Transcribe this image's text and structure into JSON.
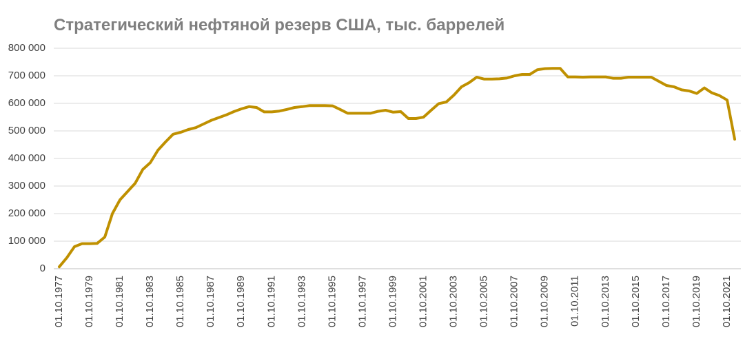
{
  "chart_data": {
    "type": "line",
    "title": "Стратегический нефтяной резерв США, тыс. баррелей",
    "categories": [
      "01.10.1977",
      null,
      null,
      null,
      "01.10.1979",
      null,
      null,
      null,
      "01.10.1981",
      null,
      null,
      null,
      "01.10.1983",
      null,
      null,
      null,
      "01.10.1985",
      null,
      null,
      null,
      "01.10.1987",
      null,
      null,
      null,
      "01.10.1989",
      null,
      null,
      null,
      "01.10.1991",
      null,
      null,
      null,
      "01.10.1993",
      null,
      null,
      null,
      "01.10.1995",
      null,
      null,
      null,
      "01.10.1997",
      null,
      null,
      null,
      "01.10.1999",
      null,
      null,
      null,
      "01.10.2001",
      null,
      null,
      null,
      "01.10.2003",
      null,
      null,
      null,
      "01.10.2005",
      null,
      null,
      null,
      "01.10.2007",
      null,
      null,
      null,
      "01.10.2009",
      null,
      null,
      null,
      "01.10.2011",
      null,
      null,
      null,
      "01.10.2013",
      null,
      null,
      null,
      "01.10.2015",
      null,
      null,
      null,
      "01.10.2017",
      null,
      null,
      null,
      "01.10.2019",
      null,
      null,
      null,
      "01.10.2021",
      null
    ],
    "values": [
      7000,
      40000,
      80000,
      91000,
      91000,
      92000,
      115000,
      200000,
      250000,
      280000,
      310000,
      360000,
      385000,
      430000,
      460000,
      488000,
      495000,
      505000,
      512000,
      525000,
      538000,
      548000,
      558000,
      570000,
      580000,
      588000,
      585000,
      569000,
      569000,
      572000,
      578000,
      585000,
      588000,
      592000,
      592000,
      592000,
      591000,
      578000,
      564000,
      564000,
      564000,
      564000,
      571000,
      575000,
      568000,
      570000,
      545000,
      545000,
      550000,
      575000,
      599000,
      605000,
      630000,
      660000,
      675000,
      695000,
      688000,
      688000,
      689000,
      692000,
      700000,
      705000,
      705000,
      722000,
      726000,
      727000,
      727000,
      696000,
      696000,
      695000,
      696000,
      696000,
      696000,
      691000,
      691000,
      695000,
      695000,
      695000,
      695000,
      680000,
      665000,
      660000,
      649000,
      645000,
      636000,
      656000,
      638000,
      628000,
      612000,
      470000
    ],
    "color": "#bf9000",
    "ylim": [
      0,
      800000
    ],
    "yticks": [
      0,
      {
        "value": 100000,
        "label": "100 000"
      },
      {
        "value": 200000,
        "label": "200 000"
      },
      {
        "value": 300000,
        "label": "300 000"
      },
      {
        "value": 400000,
        "label": "400 000"
      },
      {
        "value": 500000,
        "label": "500 000"
      },
      {
        "value": 600000,
        "label": "600 000"
      },
      {
        "value": 700000,
        "label": "700 000"
      },
      {
        "value": 800000,
        "label": "800 000"
      }
    ],
    "grid": true
  }
}
